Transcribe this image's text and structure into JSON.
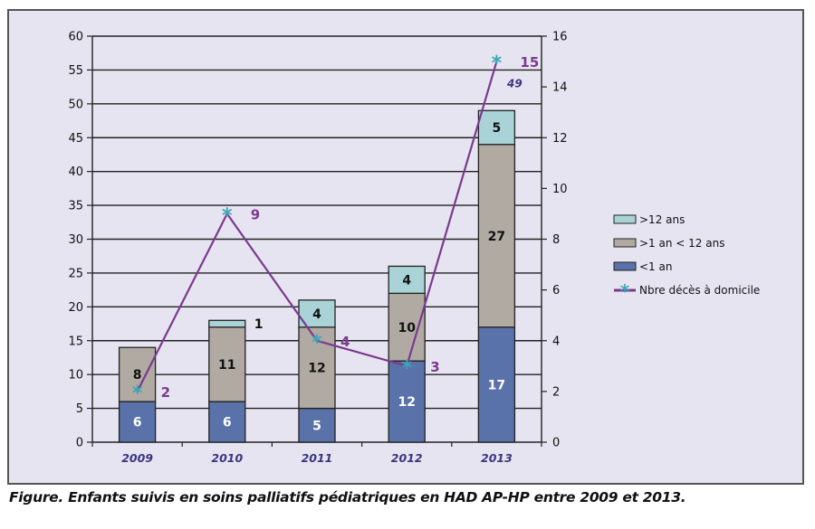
{
  "chart_data": {
    "type": "bar",
    "stacked": true,
    "categories": [
      "2009",
      "2010",
      "2011",
      "2012",
      "2013"
    ],
    "series": [
      {
        "name": "<1 an",
        "values": [
          6,
          6,
          5,
          12,
          17
        ],
        "color": "#5a72aa",
        "label_color": "#ffffff"
      },
      {
        "name": ">1 an < 12 ans",
        "values": [
          8,
          11,
          12,
          10,
          27
        ],
        "color": "#b0aaa3",
        "label_color": "#111111"
      },
      {
        "name": ">12 ans",
        "values": [
          0,
          1,
          4,
          4,
          5
        ],
        "color": "#a9d3d6",
        "label_color": "#111111"
      }
    ],
    "line_series": {
      "name": "Nbre décès à domicile",
      "axis": "right",
      "values": [
        2,
        9,
        4,
        3,
        15
      ],
      "color": "#7b3a8e",
      "marker_color": "#3ba7b8"
    },
    "totals_annotation": [
      {
        "category": "2013",
        "label": "49"
      }
    ],
    "left_axis": {
      "ylim": [
        0,
        60
      ],
      "ticks": [
        "0",
        "5",
        "10",
        "15",
        "20",
        "25",
        "30",
        "35",
        "40",
        "45",
        "50",
        "55",
        "60"
      ]
    },
    "right_axis": {
      "ylim": [
        0,
        16
      ],
      "ticks": [
        "0",
        "2",
        "4",
        "6",
        "8",
        "10",
        "12",
        "14",
        "16"
      ]
    },
    "grid": true,
    "legend_position": "right",
    "title": "",
    "xlabel": "",
    "ylabel": ""
  },
  "caption": "Figure. Enfants suivis en soins palliatifs pédiatriques en HAD AP-HP entre 2009 et 2013."
}
